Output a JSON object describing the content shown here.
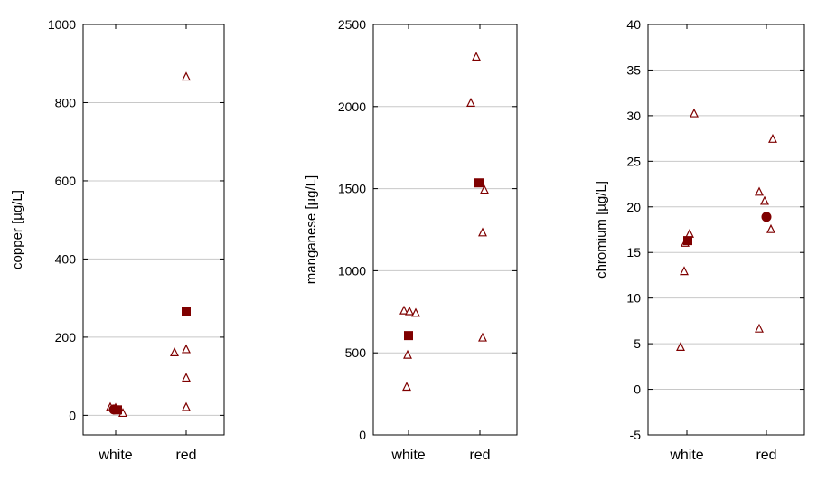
{
  "chart_data": [
    {
      "type": "scatter",
      "ylabel": "copper [µg/L]",
      "categories": [
        "white",
        "red"
      ],
      "ylim": [
        -50,
        1000
      ],
      "yticks": [
        0,
        200,
        400,
        600,
        800,
        1000
      ],
      "grid": true,
      "series": [
        {
          "marker": "triangle-open",
          "points": [
            {
              "category": "white",
              "y": 20
            },
            {
              "category": "white",
              "y": 18
            },
            {
              "category": "white",
              "y": 12
            },
            {
              "category": "white",
              "y": 5
            },
            {
              "category": "red",
              "y": 865
            },
            {
              "category": "red",
              "y": 168
            },
            {
              "category": "red",
              "y": 160
            },
            {
              "category": "red",
              "y": 95
            },
            {
              "category": "red",
              "y": 20
            }
          ]
        },
        {
          "marker": "square-filled",
          "points": [
            {
              "category": "white",
              "y": 14
            },
            {
              "category": "red",
              "y": 265
            }
          ]
        },
        {
          "marker": "circle-filled",
          "points": [
            {
              "category": "white",
              "y": 15
            }
          ]
        }
      ]
    },
    {
      "type": "scatter",
      "ylabel": "manganese [µg/L]",
      "categories": [
        "white",
        "red"
      ],
      "ylim": [
        0,
        2500
      ],
      "yticks": [
        0,
        500,
        1000,
        1500,
        2000,
        2500
      ],
      "grid": true,
      "series": [
        {
          "marker": "triangle-open",
          "points": [
            {
              "category": "white",
              "y": 755
            },
            {
              "category": "white",
              "y": 750
            },
            {
              "category": "white",
              "y": 740
            },
            {
              "category": "white",
              "y": 485
            },
            {
              "category": "white",
              "y": 290
            },
            {
              "category": "red",
              "y": 2300
            },
            {
              "category": "red",
              "y": 2020
            },
            {
              "category": "red",
              "y": 1490
            },
            {
              "category": "red",
              "y": 1230
            },
            {
              "category": "red",
              "y": 590
            }
          ]
        },
        {
          "marker": "square-filled",
          "points": [
            {
              "category": "white",
              "y": 605
            },
            {
              "category": "red",
              "y": 1535
            }
          ]
        }
      ]
    },
    {
      "type": "scatter",
      "ylabel": "chromium [µg/L]",
      "categories": [
        "white",
        "red"
      ],
      "ylim": [
        -5,
        40
      ],
      "yticks": [
        -5,
        0,
        5,
        10,
        15,
        20,
        25,
        30,
        35,
        40
      ],
      "grid": true,
      "series": [
        {
          "marker": "triangle-open",
          "points": [
            {
              "category": "white",
              "y": 30.2
            },
            {
              "category": "white",
              "y": 17
            },
            {
              "category": "white",
              "y": 16
            },
            {
              "category": "white",
              "y": 12.9
            },
            {
              "category": "white",
              "y": 4.6
            },
            {
              "category": "red",
              "y": 27.4
            },
            {
              "category": "red",
              "y": 21.6
            },
            {
              "category": "red",
              "y": 20.6
            },
            {
              "category": "red",
              "y": 17.5
            },
            {
              "category": "red",
              "y": 6.6
            }
          ]
        },
        {
          "marker": "square-filled",
          "points": [
            {
              "category": "white",
              "y": 16.3
            }
          ]
        },
        {
          "marker": "circle-filled",
          "points": [
            {
              "category": "red",
              "y": 18.9
            }
          ]
        }
      ]
    }
  ],
  "colors": {
    "marker": "#7f0000",
    "grid": "#c8c8c8",
    "axis": "#000000"
  }
}
